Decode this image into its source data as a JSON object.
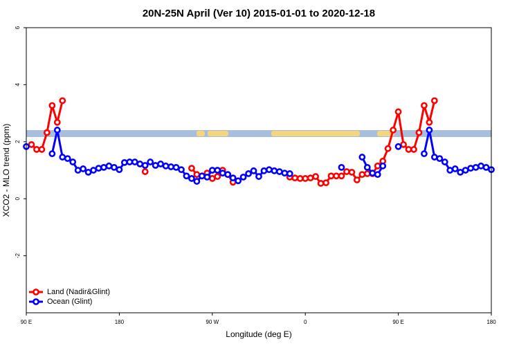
{
  "chart_data": {
    "type": "line",
    "title": "20N-25N April (Ver 10)   2015-01-01 to 2020-12-18",
    "x_label": "Longitude (deg E)",
    "y_label": "XCO2 - MLO trend (ppm)",
    "x": [
      90,
      95,
      100,
      105,
      110,
      115,
      120,
      125,
      130,
      135,
      140,
      145,
      150,
      155,
      160,
      165,
      170,
      175,
      180,
      185,
      190,
      195,
      200,
      205,
      210,
      215,
      220,
      225,
      230,
      235,
      240,
      245,
      250,
      255,
      260,
      265,
      270,
      275,
      280,
      285,
      290,
      295,
      300,
      305,
      310,
      315,
      320,
      325,
      330,
      335,
      340,
      345,
      350,
      355,
      360,
      365,
      370,
      375,
      380,
      385,
      390,
      395,
      400,
      405,
      410,
      415,
      420,
      425,
      430,
      435,
      440,
      445,
      450,
      455,
      460,
      465,
      470,
      475,
      480,
      485,
      490,
      495,
      500,
      505,
      510,
      515,
      520,
      525,
      530,
      535,
      540
    ],
    "xlim": [
      90,
      540
    ],
    "xticks": [
      {
        "value": 90,
        "label": "90 E"
      },
      180,
      {
        "value": 270,
        "label": "90 W"
      },
      {
        "value": 360,
        "label": "0"
      },
      {
        "value": 450,
        "label": "90 E"
      },
      {
        "value": 540,
        "label": "180"
      }
    ],
    "ylim": [
      -4,
      6
    ],
    "yticks": [
      -2,
      0,
      2,
      4,
      6
    ],
    "legend": "bottomleft",
    "series": [
      {
        "name": "Land (Nadir&Glint)",
        "color": "#ff0000",
        "values": [
          null,
          1.9,
          1.73,
          1.73,
          2.32,
          3.27,
          2.68,
          3.44,
          null,
          null,
          null,
          null,
          null,
          null,
          null,
          null,
          null,
          null,
          null,
          null,
          null,
          null,
          null,
          0.95,
          null,
          null,
          null,
          null,
          null,
          null,
          null,
          null,
          1.07,
          0.85,
          0.8,
          0.9,
          0.71,
          0.78,
          1.0,
          0.85,
          0.58,
          null,
          null,
          null,
          null,
          null,
          null,
          null,
          null,
          null,
          null,
          0.76,
          0.73,
          0.71,
          0.71,
          0.73,
          0.78,
          0.54,
          0.56,
          0.8,
          0.8,
          0.8,
          0.95,
          0.93,
          0.66,
          0.85,
          0.88,
          0.88,
          1.15,
          1.32,
          1.76,
          2.41,
          3.05,
          1.9,
          1.73,
          1.73,
          2.32,
          3.27,
          2.68,
          3.44,
          null,
          null,
          null,
          null,
          null,
          null,
          null,
          null,
          null,
          null,
          null
        ]
      },
      {
        "name": "Ocean (Glint)",
        "color": "#0000ff",
        "values": [
          1.83,
          null,
          null,
          null,
          null,
          1.58,
          2.41,
          1.46,
          1.41,
          1.29,
          1.0,
          1.05,
          0.93,
          1.0,
          1.07,
          1.1,
          1.15,
          1.1,
          1.02,
          1.27,
          1.29,
          1.29,
          1.22,
          1.17,
          1.29,
          1.17,
          1.22,
          1.15,
          1.12,
          1.1,
          1.02,
          0.8,
          0.71,
          0.61,
          0.8,
          0.76,
          1.0,
          1.0,
          0.9,
          0.85,
          0.73,
          0.63,
          0.76,
          0.88,
          0.98,
          0.78,
          0.98,
          1.02,
          0.98,
          0.95,
          0.9,
          0.88,
          null,
          null,
          null,
          null,
          null,
          null,
          null,
          null,
          null,
          1.1,
          null,
          null,
          null,
          1.46,
          1.1,
          0.9,
          0.85,
          1.15,
          null,
          null,
          1.83,
          null,
          null,
          null,
          null,
          1.58,
          2.41,
          1.46,
          1.41,
          1.29,
          1.0,
          1.05,
          0.93,
          1.0,
          1.07,
          1.1,
          1.15,
          1.1,
          1.02
        ]
      }
    ]
  }
}
